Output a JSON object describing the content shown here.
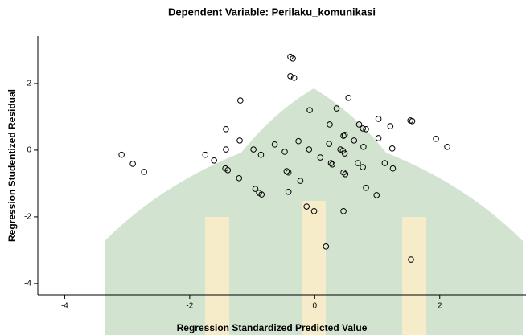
{
  "chart_data": {
    "type": "scatter",
    "title": "Dependent Variable: Perilaku_komunikasi",
    "x_label": "Regression Standardized Predicted Value",
    "y_label": "Regression Studentized Residual",
    "xlim": [
      -4.43,
      3.38
    ],
    "ylim": [
      -4.34,
      3.42
    ],
    "xticks": [
      -4,
      -2,
      0,
      2
    ],
    "yticks": [
      -4,
      -2,
      0,
      2
    ],
    "color": "#000000",
    "x": [
      -3.09,
      -2.91,
      -2.73,
      -1.75,
      -1.61,
      -1.42,
      -1.43,
      -1.39,
      -1.21,
      -1.2,
      -1.19,
      -1.42,
      -0.98,
      -0.86,
      -0.95,
      -0.89,
      -0.85,
      -0.64,
      -0.48,
      -0.45,
      -0.42,
      -0.42,
      -0.39,
      -0.35,
      -0.39,
      -0.33,
      -0.26,
      -0.23,
      -0.08,
      -0.09,
      0.09,
      -0.13,
      -0.01,
      0.18,
      0.23,
      0.26,
      0.28,
      0.24,
      0.35,
      0.41,
      0.45,
      0.48,
      0.46,
      0.49,
      0.46,
      0.48,
      0.46,
      0.54,
      0.63,
      0.69,
      0.77,
      0.71,
      0.77,
      0.82,
      0.78,
      0.82,
      0.99,
      1.02,
      1.02,
      1.12,
      1.21,
      1.24,
      1.25,
      1.53,
      1.56,
      1.54,
      1.94,
      2.12
    ],
    "values": [
      -0.14,
      -0.41,
      -0.65,
      -0.14,
      -0.31,
      0.02,
      -0.55,
      -0.6,
      -0.84,
      0.29,
      1.49,
      0.63,
      0.02,
      -0.14,
      -1.16,
      -1.28,
      -1.33,
      0.17,
      -0.05,
      -0.63,
      -0.67,
      -1.25,
      2.8,
      2.75,
      2.22,
      2.17,
      0.27,
      -0.92,
      1.2,
      0.02,
      -0.22,
      -1.69,
      -1.83,
      -2.89,
      0.19,
      -0.39,
      -0.43,
      0.77,
      1.25,
      0.02,
      -0.02,
      -0.1,
      -0.67,
      -0.72,
      0.43,
      0.46,
      -1.83,
      1.57,
      0.29,
      -0.39,
      -0.51,
      0.77,
      0.65,
      0.63,
      0.1,
      -1.13,
      -1.35,
      0.94,
      0.36,
      -0.39,
      0.72,
      0.05,
      -0.55,
      0.89,
      0.87,
      -3.28,
      0.34,
      0.1
    ]
  }
}
